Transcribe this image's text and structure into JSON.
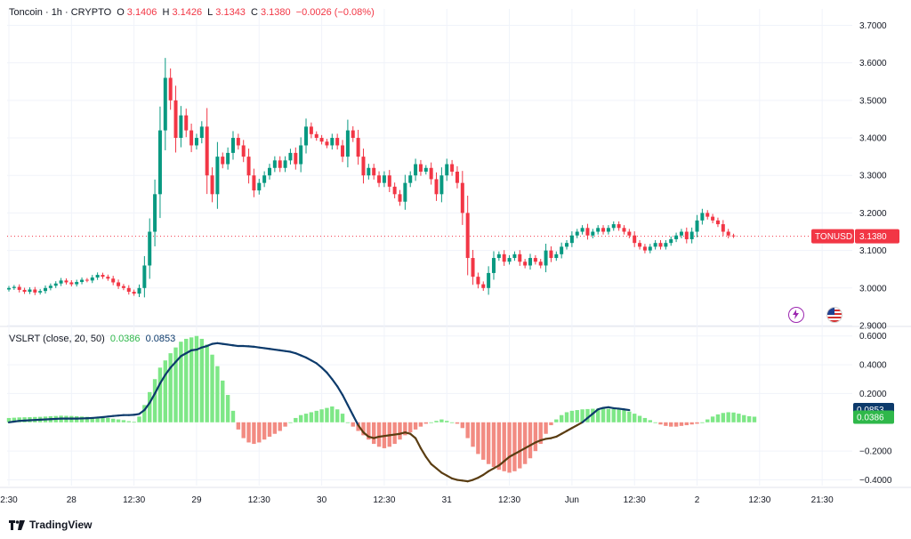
{
  "header": {
    "symbol": "Toncoin · 1h · CRYPTO",
    "open_label": "O",
    "open": "3.1406",
    "high_label": "H",
    "high": "3.1426",
    "low_label": "L",
    "low": "3.1343",
    "close_label": "C",
    "close": "3.1380",
    "change": "−0.0026 (−0.08%)"
  },
  "indicator": {
    "name": "VSLRT (close, 20, 50)",
    "value1": "0.0386",
    "value2": "0.0853"
  },
  "price_tag": {
    "symbol": "TONUSD",
    "value": "3.1380"
  },
  "indicator_tags": {
    "line": "0.0853",
    "hist": "0.0386"
  },
  "branding": {
    "name": "TradingView"
  },
  "colors": {
    "up": "#089981",
    "down": "#f23645",
    "hist_up": "#7ee787",
    "hist_down": "#f28b82",
    "line_up": "#0c3a6b",
    "line_down": "#5a3d12",
    "accent": "#9c27b0"
  },
  "icons": [
    "lightning-icon",
    "us-flag-icon",
    "tradingview-logo-icon"
  ],
  "chart_data": [
    {
      "type": "candlestick",
      "title": "Toncoin · 1h · CRYPTO",
      "y_ticks": [
        "3.7000",
        "3.6000",
        "3.5000",
        "3.4000",
        "3.3000",
        "3.2000",
        "3.1000",
        "3.0000",
        "2.9000"
      ],
      "ylim": [
        2.9,
        3.72
      ],
      "x_ticks": [
        {
          "i": 0,
          "label": "2:30"
        },
        {
          "i": 12,
          "label": "28"
        },
        {
          "i": 24,
          "label": "12:30"
        },
        {
          "i": 36,
          "label": "29"
        },
        {
          "i": 48,
          "label": "12:30"
        },
        {
          "i": 60,
          "label": "30"
        },
        {
          "i": 72,
          "label": "12:30"
        },
        {
          "i": 84,
          "label": "31"
        },
        {
          "i": 96,
          "label": "12:30"
        },
        {
          "i": 108,
          "label": "Jun"
        },
        {
          "i": 120,
          "label": "12:30"
        },
        {
          "i": 132,
          "label": "2"
        },
        {
          "i": 144,
          "label": "12:30"
        },
        {
          "i": 156,
          "label": "21:30"
        }
      ],
      "last_price": 3.138,
      "closes": [
        3.0,
        3.003,
        2.995,
        2.99,
        2.996,
        2.988,
        2.992,
        3.0,
        3.006,
        3.012,
        3.02,
        3.015,
        3.01,
        3.016,
        3.022,
        3.02,
        3.028,
        3.035,
        3.03,
        3.025,
        3.015,
        3.005,
        3.0,
        2.99,
        2.985,
        3.0,
        3.06,
        3.15,
        3.25,
        3.42,
        3.56,
        3.5,
        3.4,
        3.46,
        3.42,
        3.38,
        3.4,
        3.43,
        3.3,
        3.25,
        3.35,
        3.33,
        3.36,
        3.4,
        3.38,
        3.35,
        3.3,
        3.26,
        3.28,
        3.3,
        3.32,
        3.34,
        3.32,
        3.34,
        3.36,
        3.33,
        3.38,
        3.43,
        3.41,
        3.4,
        3.39,
        3.38,
        3.4,
        3.38,
        3.35,
        3.42,
        3.4,
        3.35,
        3.3,
        3.32,
        3.3,
        3.28,
        3.3,
        3.27,
        3.25,
        3.23,
        3.28,
        3.3,
        3.33,
        3.31,
        3.32,
        3.29,
        3.25,
        3.3,
        3.33,
        3.31,
        3.28,
        3.2,
        3.08,
        3.03,
        3.01,
        3.0,
        3.04,
        3.08,
        3.09,
        3.07,
        3.08,
        3.09,
        3.07,
        3.06,
        3.08,
        3.07,
        3.06,
        3.1,
        3.08,
        3.09,
        3.11,
        3.12,
        3.14,
        3.15,
        3.16,
        3.14,
        3.15,
        3.16,
        3.15,
        3.16,
        3.17,
        3.16,
        3.15,
        3.14,
        3.12,
        3.11,
        3.1,
        3.11,
        3.12,
        3.11,
        3.12,
        3.13,
        3.14,
        3.15,
        3.13,
        3.15,
        3.18,
        3.2,
        3.19,
        3.18,
        3.17,
        3.15,
        3.14,
        3.138
      ],
      "series": [
        {
          "name": "VSLRT histogram",
          "type": "bar",
          "ylim": [
            -0.44,
            0.66
          ],
          "y_ticks": [
            "0.6000",
            "0.4000",
            "0.2000",
            "−0.2000",
            "−0.4000"
          ],
          "values": [
            0.03,
            0.032,
            0.034,
            0.035,
            0.036,
            0.037,
            0.038,
            0.04,
            0.042,
            0.044,
            0.046,
            0.045,
            0.044,
            0.042,
            0.04,
            0.038,
            0.036,
            0.034,
            0.032,
            0.03,
            0.025,
            0.02,
            0.015,
            0.008,
            0.003,
            0.04,
            0.12,
            0.21,
            0.3,
            0.38,
            0.43,
            0.48,
            0.52,
            0.56,
            0.58,
            0.59,
            0.6,
            0.58,
            0.54,
            0.47,
            0.39,
            0.29,
            0.19,
            0.08,
            -0.05,
            -0.11,
            -0.14,
            -0.15,
            -0.14,
            -0.12,
            -0.1,
            -0.08,
            -0.06,
            -0.03,
            0.0,
            0.03,
            0.05,
            0.06,
            0.07,
            0.08,
            0.09,
            0.1,
            0.11,
            0.09,
            0.06,
            0.0,
            -0.03,
            -0.06,
            -0.09,
            -0.12,
            -0.15,
            -0.17,
            -0.18,
            -0.17,
            -0.15,
            -0.12,
            -0.09,
            -0.07,
            -0.05,
            -0.03,
            -0.01,
            0.0,
            0.01,
            0.02,
            0.01,
            0.0,
            -0.01,
            -0.04,
            -0.11,
            -0.17,
            -0.22,
            -0.26,
            -0.29,
            -0.31,
            -0.33,
            -0.34,
            -0.35,
            -0.34,
            -0.32,
            -0.29,
            -0.25,
            -0.2,
            -0.15,
            -0.08,
            -0.02,
            0.02,
            0.05,
            0.07,
            0.08,
            0.085,
            0.09,
            0.092,
            0.094,
            0.095,
            0.095,
            0.094,
            0.092,
            0.09,
            0.085,
            0.075,
            0.06,
            0.045,
            0.03,
            0.015,
            0.0,
            -0.015,
            -0.025,
            -0.03,
            -0.03,
            -0.025,
            -0.02,
            -0.015,
            -0.01,
            0.0,
            0.02,
            0.04,
            0.055,
            0.065,
            0.07,
            0.068,
            0.06,
            0.05,
            0.042,
            0.039
          ]
        },
        {
          "name": "VSLRT line",
          "type": "line",
          "values": [
            0.0,
            0.005,
            0.01,
            0.012,
            0.014,
            0.016,
            0.018,
            0.02,
            0.022,
            0.024,
            0.026,
            0.026,
            0.026,
            0.026,
            0.027,
            0.028,
            0.03,
            0.033,
            0.036,
            0.04,
            0.044,
            0.047,
            0.05,
            0.05,
            0.052,
            0.058,
            0.085,
            0.135,
            0.2,
            0.27,
            0.33,
            0.38,
            0.42,
            0.46,
            0.48,
            0.5,
            0.505,
            0.52,
            0.53,
            0.545,
            0.55,
            0.545,
            0.54,
            0.535,
            0.53,
            0.53,
            0.528,
            0.525,
            0.52,
            0.515,
            0.51,
            0.505,
            0.5,
            0.495,
            0.49,
            0.48,
            0.465,
            0.45,
            0.43,
            0.41,
            0.38,
            0.345,
            0.3,
            0.25,
            0.19,
            0.12,
            0.05,
            -0.02,
            -0.07,
            -0.1,
            -0.11,
            -0.1,
            -0.095,
            -0.09,
            -0.085,
            -0.08,
            -0.07,
            -0.08,
            -0.11,
            -0.18,
            -0.24,
            -0.29,
            -0.32,
            -0.35,
            -0.37,
            -0.39,
            -0.4,
            -0.405,
            -0.41,
            -0.4,
            -0.385,
            -0.365,
            -0.34,
            -0.32,
            -0.3,
            -0.27,
            -0.24,
            -0.22,
            -0.2,
            -0.18,
            -0.16,
            -0.14,
            -0.125,
            -0.115,
            -0.11,
            -0.1,
            -0.08,
            -0.06,
            -0.04,
            -0.02,
            0.0,
            0.03,
            0.06,
            0.09,
            0.1,
            0.105,
            0.098,
            0.095,
            0.09,
            0.085
          ]
        }
      ]
    }
  ]
}
